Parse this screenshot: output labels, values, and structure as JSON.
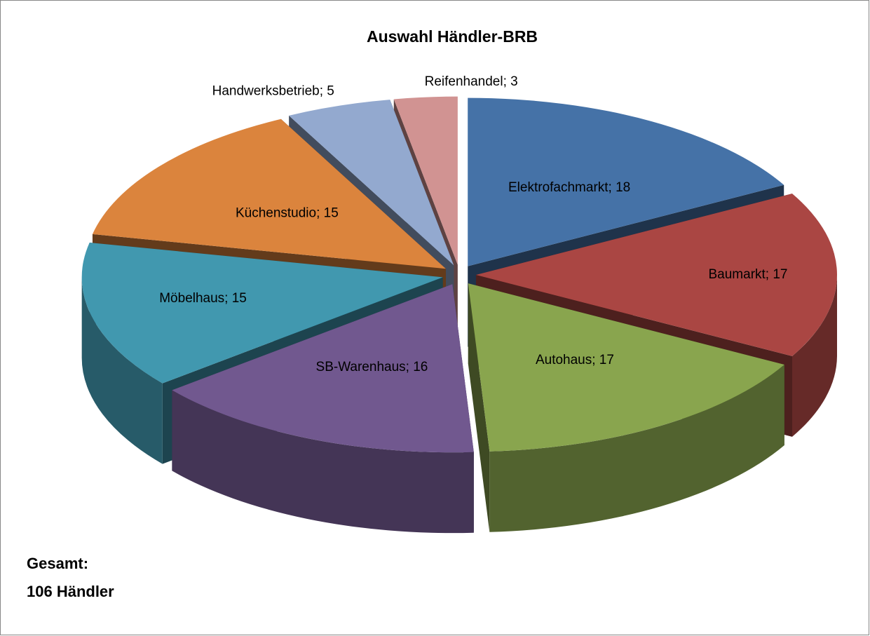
{
  "chart_data": {
    "type": "pie3d",
    "title": "Auswahl Händler-BRB",
    "categories": [
      "Elektrofachmarkt",
      "Baumarkt",
      "Autohaus",
      "SB-Warenhaus",
      "Möbelhaus",
      "Küchenstudio",
      "Handwerksbetrieb",
      "Reifenhandel"
    ],
    "values": [
      18,
      17,
      17,
      16,
      15,
      15,
      5,
      3
    ],
    "value_labels": [
      "Elektrofachmarkt; 18",
      "Baumarkt; 17",
      "Autohaus; 17",
      "SB-Warenhaus; 16",
      "Möbelhaus; 15",
      "Küchenstudio; 15",
      "Handwerksbetrieb; 5",
      "Reifenhandel; 3"
    ],
    "colors": [
      "#4572a7",
      "#aa4643",
      "#89a54e",
      "#71588f",
      "#4198af",
      "#db843d",
      "#93a9cf",
      "#d19392"
    ],
    "annotations": [
      "Gesamt:",
      "106 Händler"
    ]
  }
}
